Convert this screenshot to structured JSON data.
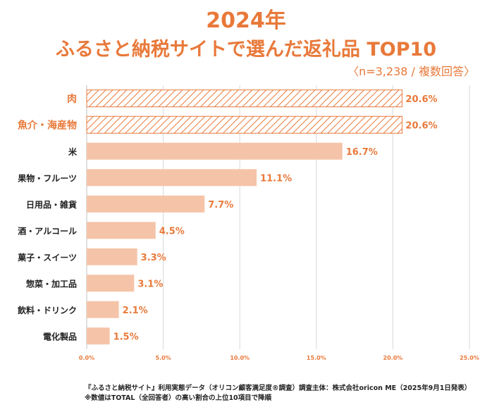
{
  "header": {
    "title_line1": "2024年",
    "title_line2": "ふるさと納税サイトで選んだ返礼品 TOP10",
    "subtitle": "〈n=3,238 / 複数回答〉"
  },
  "chart_data": {
    "type": "bar",
    "orientation": "horizontal",
    "categories": [
      "肉",
      "魚介・海産物",
      "米",
      "果物・フルーツ",
      "日用品・雑貨",
      "酒・アルコール",
      "菓子・スイーツ",
      "惣菜・加工品",
      "飲料・ドリンク",
      "電化製品"
    ],
    "values": [
      20.6,
      20.6,
      16.7,
      11.1,
      7.7,
      4.5,
      3.3,
      3.1,
      2.1,
      1.5
    ],
    "value_labels": [
      "20.6%",
      "20.6%",
      "16.7%",
      "11.1%",
      "7.7%",
      "4.5%",
      "3.3%",
      "3.1%",
      "2.1%",
      "1.5%"
    ],
    "highlighted": [
      true,
      true,
      false,
      false,
      false,
      false,
      false,
      false,
      false,
      false
    ],
    "xlim": [
      0,
      25
    ],
    "xticks": [
      0,
      5,
      10,
      15,
      20,
      25
    ],
    "xtick_labels": [
      "0.0%",
      "5.0%",
      "10.0%",
      "15.0%",
      "20.0%",
      "25.0%"
    ],
    "grid": "vertical",
    "colors": {
      "bar": "#F5C4A8",
      "accent": "#E8793A",
      "hatch": "#E8793A",
      "text": "#222222"
    }
  },
  "footer": {
    "line1": "『ふるさと納税サイト』利用実態データ（オリコン顧客満足度®調査）調査主体：株式会社oricon ME（2025年9月1日発表）",
    "line2": "※数値はTOTAL（全回答者）の高い割合の上位10項目で降順"
  }
}
